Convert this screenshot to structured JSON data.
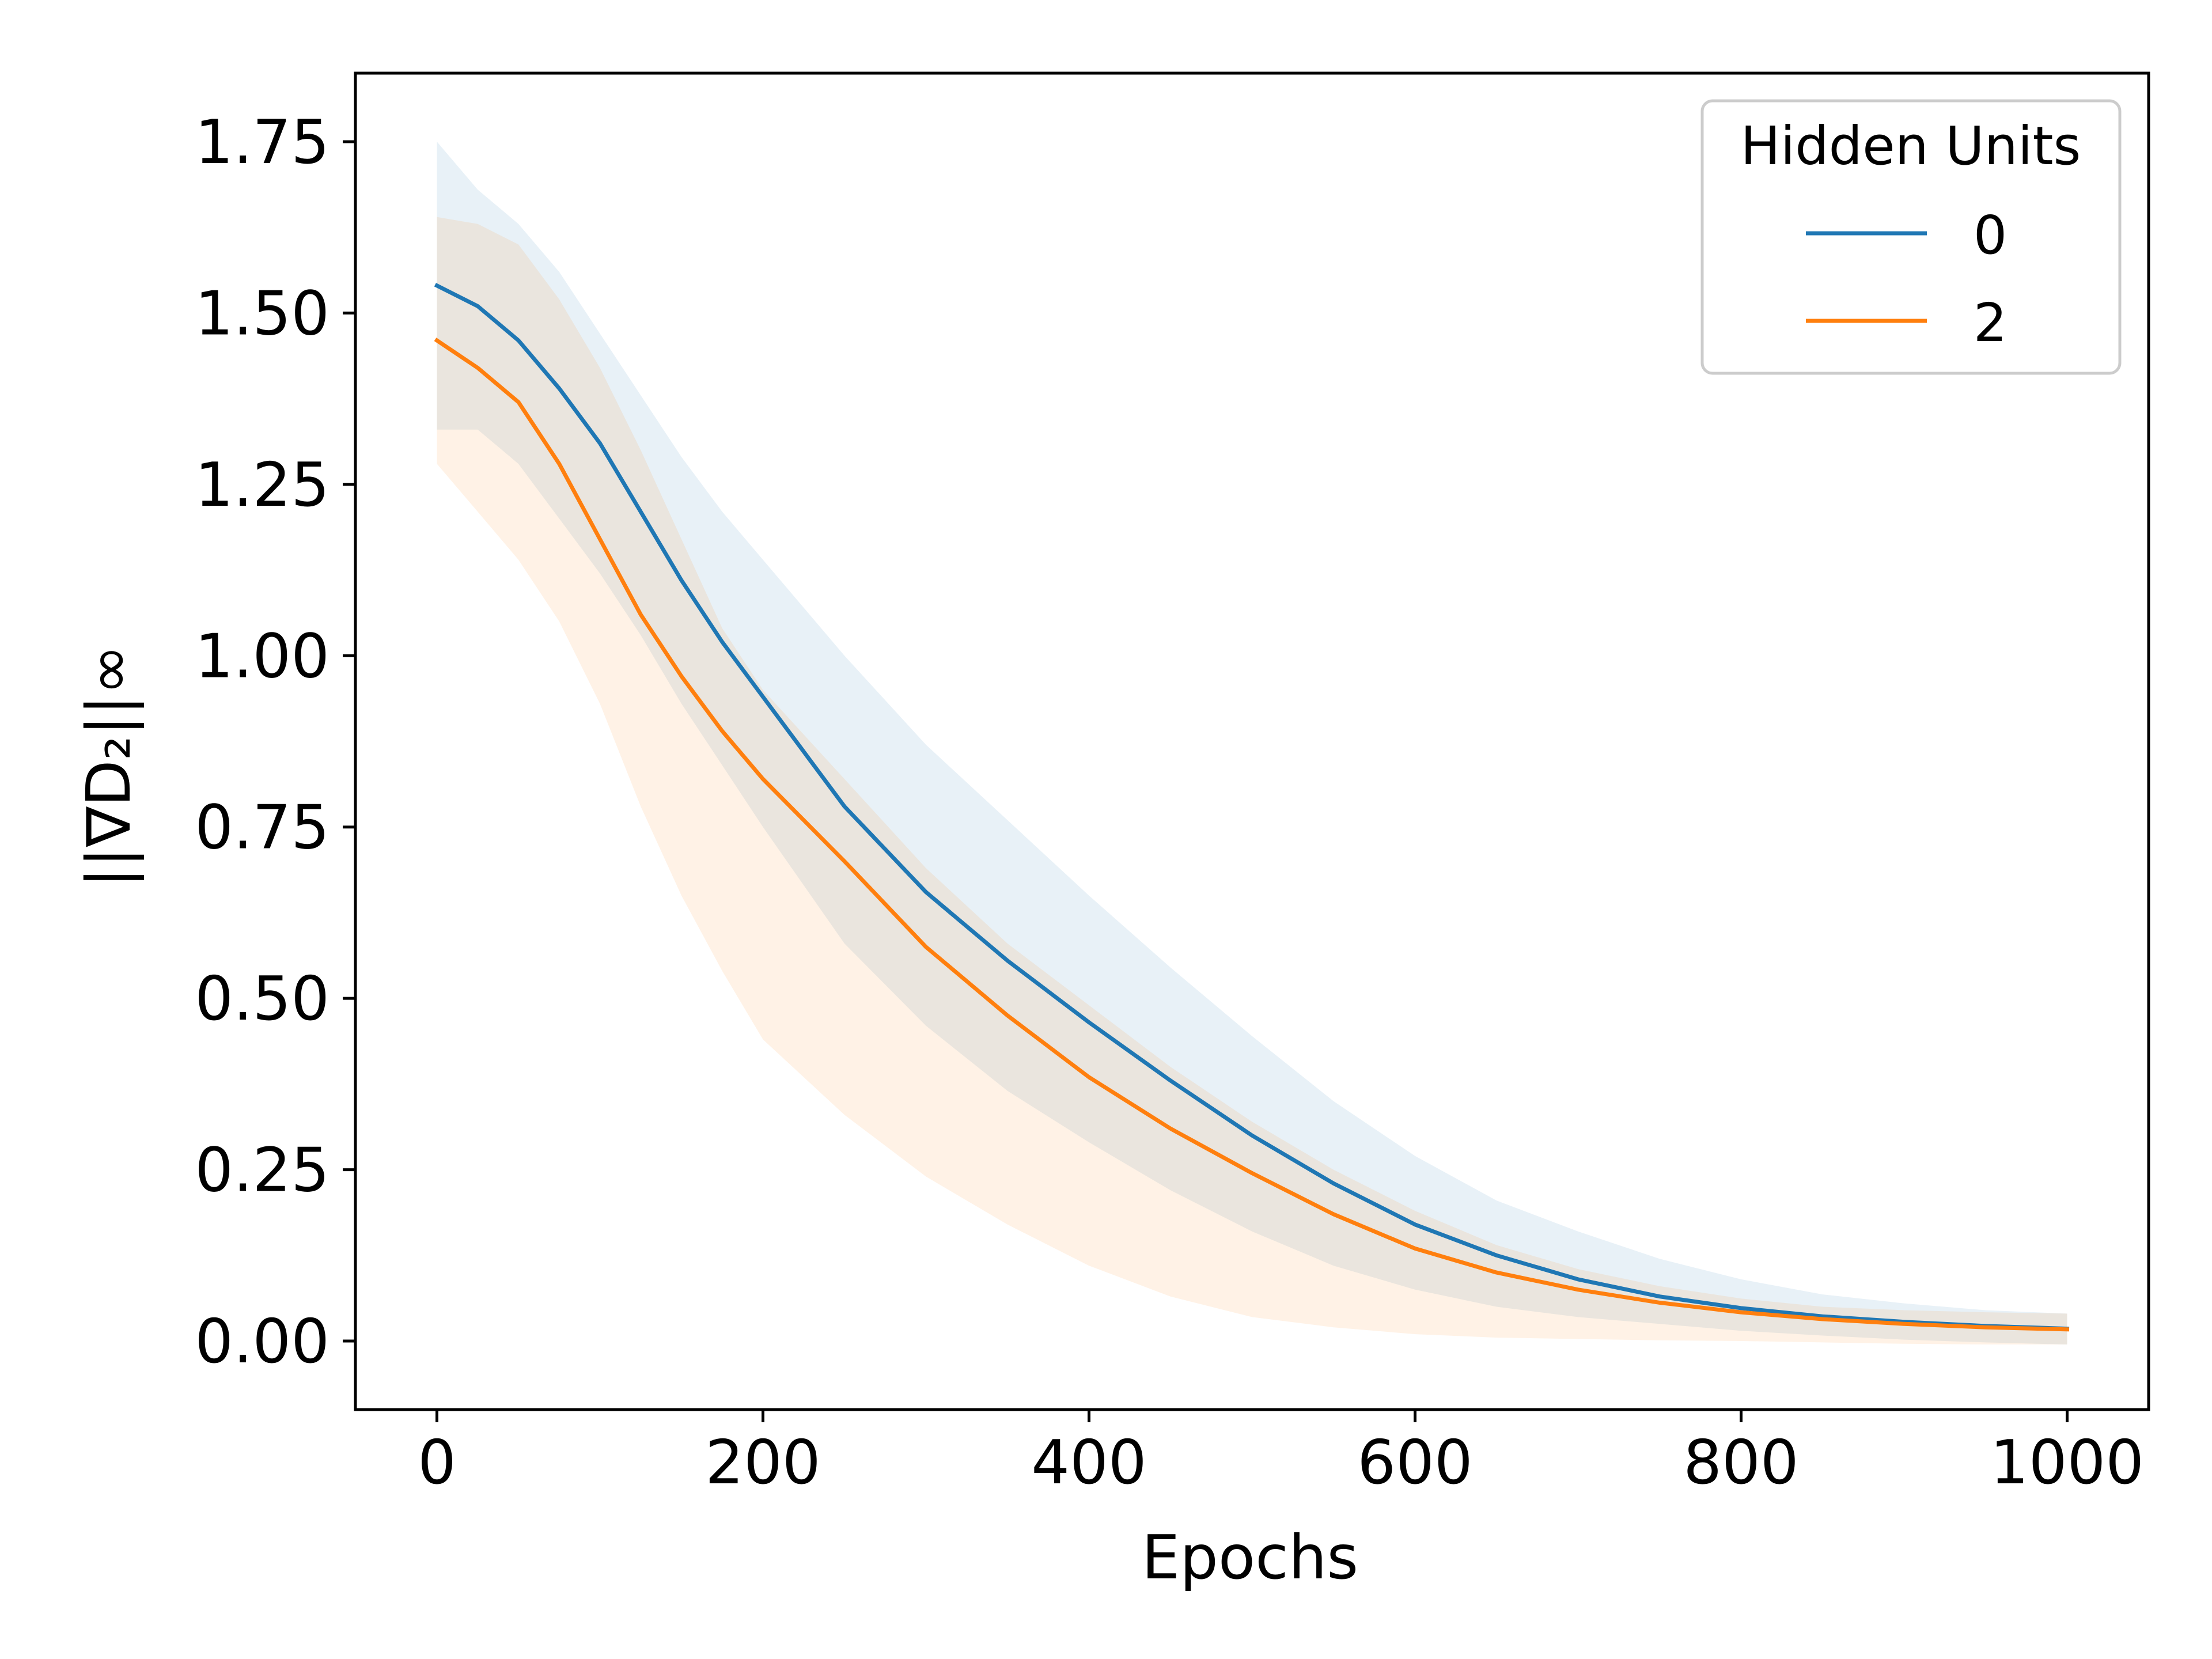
{
  "chart_data": {
    "type": "line",
    "xlabel": "Epochs",
    "ylabel": "||∇D₂||∞",
    "xlim": [
      -50,
      1050
    ],
    "ylim": [
      -0.1,
      1.85
    ],
    "xticks": [
      0,
      200,
      400,
      600,
      800,
      1000
    ],
    "xtick_labels": [
      "0",
      "200",
      "400",
      "600",
      "800",
      "1000"
    ],
    "yticks": [
      0.0,
      0.25,
      0.5,
      0.75,
      1.0,
      1.25,
      1.5,
      1.75
    ],
    "ytick_labels": [
      "0.00",
      "0.25",
      "0.50",
      "0.75",
      "1.00",
      "1.25",
      "1.50",
      "1.75"
    ],
    "grid": false,
    "legend": {
      "title": "Hidden Units",
      "placement": "top-right"
    },
    "series": [
      {
        "name": "0",
        "color": "#1f77b4",
        "band_color": "#1f77b4",
        "x": [
          0,
          25,
          50,
          75,
          100,
          125,
          150,
          175,
          200,
          250,
          300,
          350,
          400,
          450,
          500,
          550,
          600,
          650,
          700,
          750,
          800,
          850,
          900,
          950,
          1000
        ],
        "mean": [
          1.54,
          1.51,
          1.46,
          1.39,
          1.31,
          1.21,
          1.11,
          1.02,
          0.94,
          0.78,
          0.655,
          0.555,
          0.465,
          0.38,
          0.3,
          0.23,
          0.17,
          0.125,
          0.09,
          0.065,
          0.048,
          0.036,
          0.028,
          0.022,
          0.018
        ],
        "upper": [
          1.75,
          1.68,
          1.63,
          1.56,
          1.47,
          1.38,
          1.29,
          1.21,
          1.14,
          1.0,
          0.87,
          0.76,
          0.65,
          0.545,
          0.445,
          0.35,
          0.27,
          0.205,
          0.16,
          0.12,
          0.09,
          0.068,
          0.055,
          0.045,
          0.04
        ],
        "lower": [
          1.33,
          1.33,
          1.28,
          1.2,
          1.12,
          1.03,
          0.93,
          0.84,
          0.75,
          0.58,
          0.46,
          0.365,
          0.29,
          0.22,
          0.16,
          0.11,
          0.075,
          0.05,
          0.035,
          0.025,
          0.015,
          0.008,
          0.002,
          -0.002,
          -0.005
        ]
      },
      {
        "name": "2",
        "color": "#ff7f0e",
        "band_color": "#ff7f0e",
        "x": [
          0,
          25,
          50,
          75,
          100,
          125,
          150,
          175,
          200,
          250,
          300,
          350,
          400,
          450,
          500,
          550,
          600,
          650,
          700,
          750,
          800,
          850,
          900,
          950,
          1000
        ],
        "mean": [
          1.46,
          1.42,
          1.37,
          1.28,
          1.17,
          1.06,
          0.97,
          0.89,
          0.82,
          0.7,
          0.575,
          0.475,
          0.385,
          0.31,
          0.245,
          0.185,
          0.135,
          0.1,
          0.075,
          0.056,
          0.042,
          0.032,
          0.025,
          0.02,
          0.017
        ],
        "upper": [
          1.64,
          1.63,
          1.6,
          1.52,
          1.42,
          1.3,
          1.17,
          1.04,
          0.95,
          0.82,
          0.69,
          0.58,
          0.49,
          0.4,
          0.32,
          0.25,
          0.19,
          0.14,
          0.105,
          0.08,
          0.062,
          0.05,
          0.045,
          0.042,
          0.04
        ],
        "lower": [
          1.28,
          1.21,
          1.14,
          1.05,
          0.93,
          0.78,
          0.65,
          0.54,
          0.44,
          0.33,
          0.24,
          0.17,
          0.11,
          0.065,
          0.035,
          0.02,
          0.01,
          0.005,
          0.003,
          0.001,
          0.0,
          -0.002,
          -0.004,
          -0.005,
          -0.005
        ]
      }
    ]
  }
}
